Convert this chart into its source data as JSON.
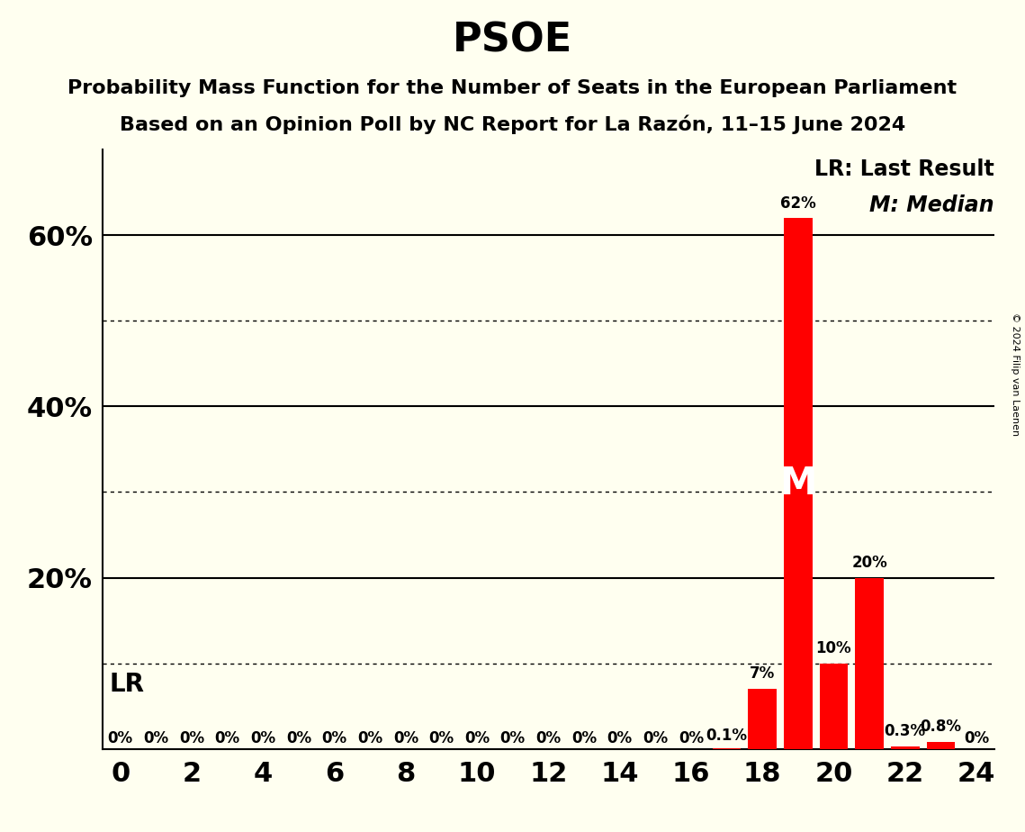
{
  "title": "PSOE",
  "subtitle1": "Probability Mass Function for the Number of Seats in the European Parliament",
  "subtitle2": "Based on an Opinion Poll by NC Report for La Razón, 11–15 June 2024",
  "copyright": "© 2024 Filip van Laenen",
  "background_color": "#fffff0",
  "bar_color": "#ff0000",
  "seats": [
    0,
    1,
    2,
    3,
    4,
    5,
    6,
    7,
    8,
    9,
    10,
    11,
    12,
    13,
    14,
    15,
    16,
    17,
    18,
    19,
    20,
    21,
    22,
    23,
    24
  ],
  "probabilities": [
    0.0,
    0.0,
    0.0,
    0.0,
    0.0,
    0.0,
    0.0,
    0.0,
    0.0,
    0.0,
    0.0,
    0.0,
    0.0,
    0.0,
    0.0,
    0.0,
    0.0,
    0.1,
    7.0,
    62.0,
    10.0,
    20.0,
    0.3,
    0.8,
    0.0
  ],
  "bar_labels": [
    "0%",
    "0%",
    "0%",
    "0%",
    "0%",
    "0%",
    "0%",
    "0%",
    "0%",
    "0%",
    "0%",
    "0%",
    "0%",
    "0%",
    "0%",
    "0%",
    "0%",
    "0.1%",
    "7%",
    "62%",
    "10%",
    "20%",
    "0.3%",
    "0.8%",
    "0%"
  ],
  "xlim": [
    -0.5,
    24.5
  ],
  "ylim": [
    0,
    70
  ],
  "major_yticks": [
    20,
    40,
    60
  ],
  "major_ytick_labels": [
    "20%",
    "40%",
    "60%"
  ],
  "dotted_yticks": [
    10,
    30,
    50
  ],
  "xticks": [
    0,
    2,
    4,
    6,
    8,
    10,
    12,
    14,
    16,
    18,
    20,
    22,
    24
  ],
  "median_seat": 19,
  "median_label": "M",
  "lr_label": "LR",
  "legend_lr": "LR: Last Result",
  "legend_m": "M: Median",
  "title_fontsize": 32,
  "subtitle_fontsize": 16,
  "axis_label_fontsize": 22,
  "bar_label_fontsize": 12,
  "legend_fontsize": 17,
  "median_label_fontsize": 30,
  "lr_label_fontsize": 20
}
